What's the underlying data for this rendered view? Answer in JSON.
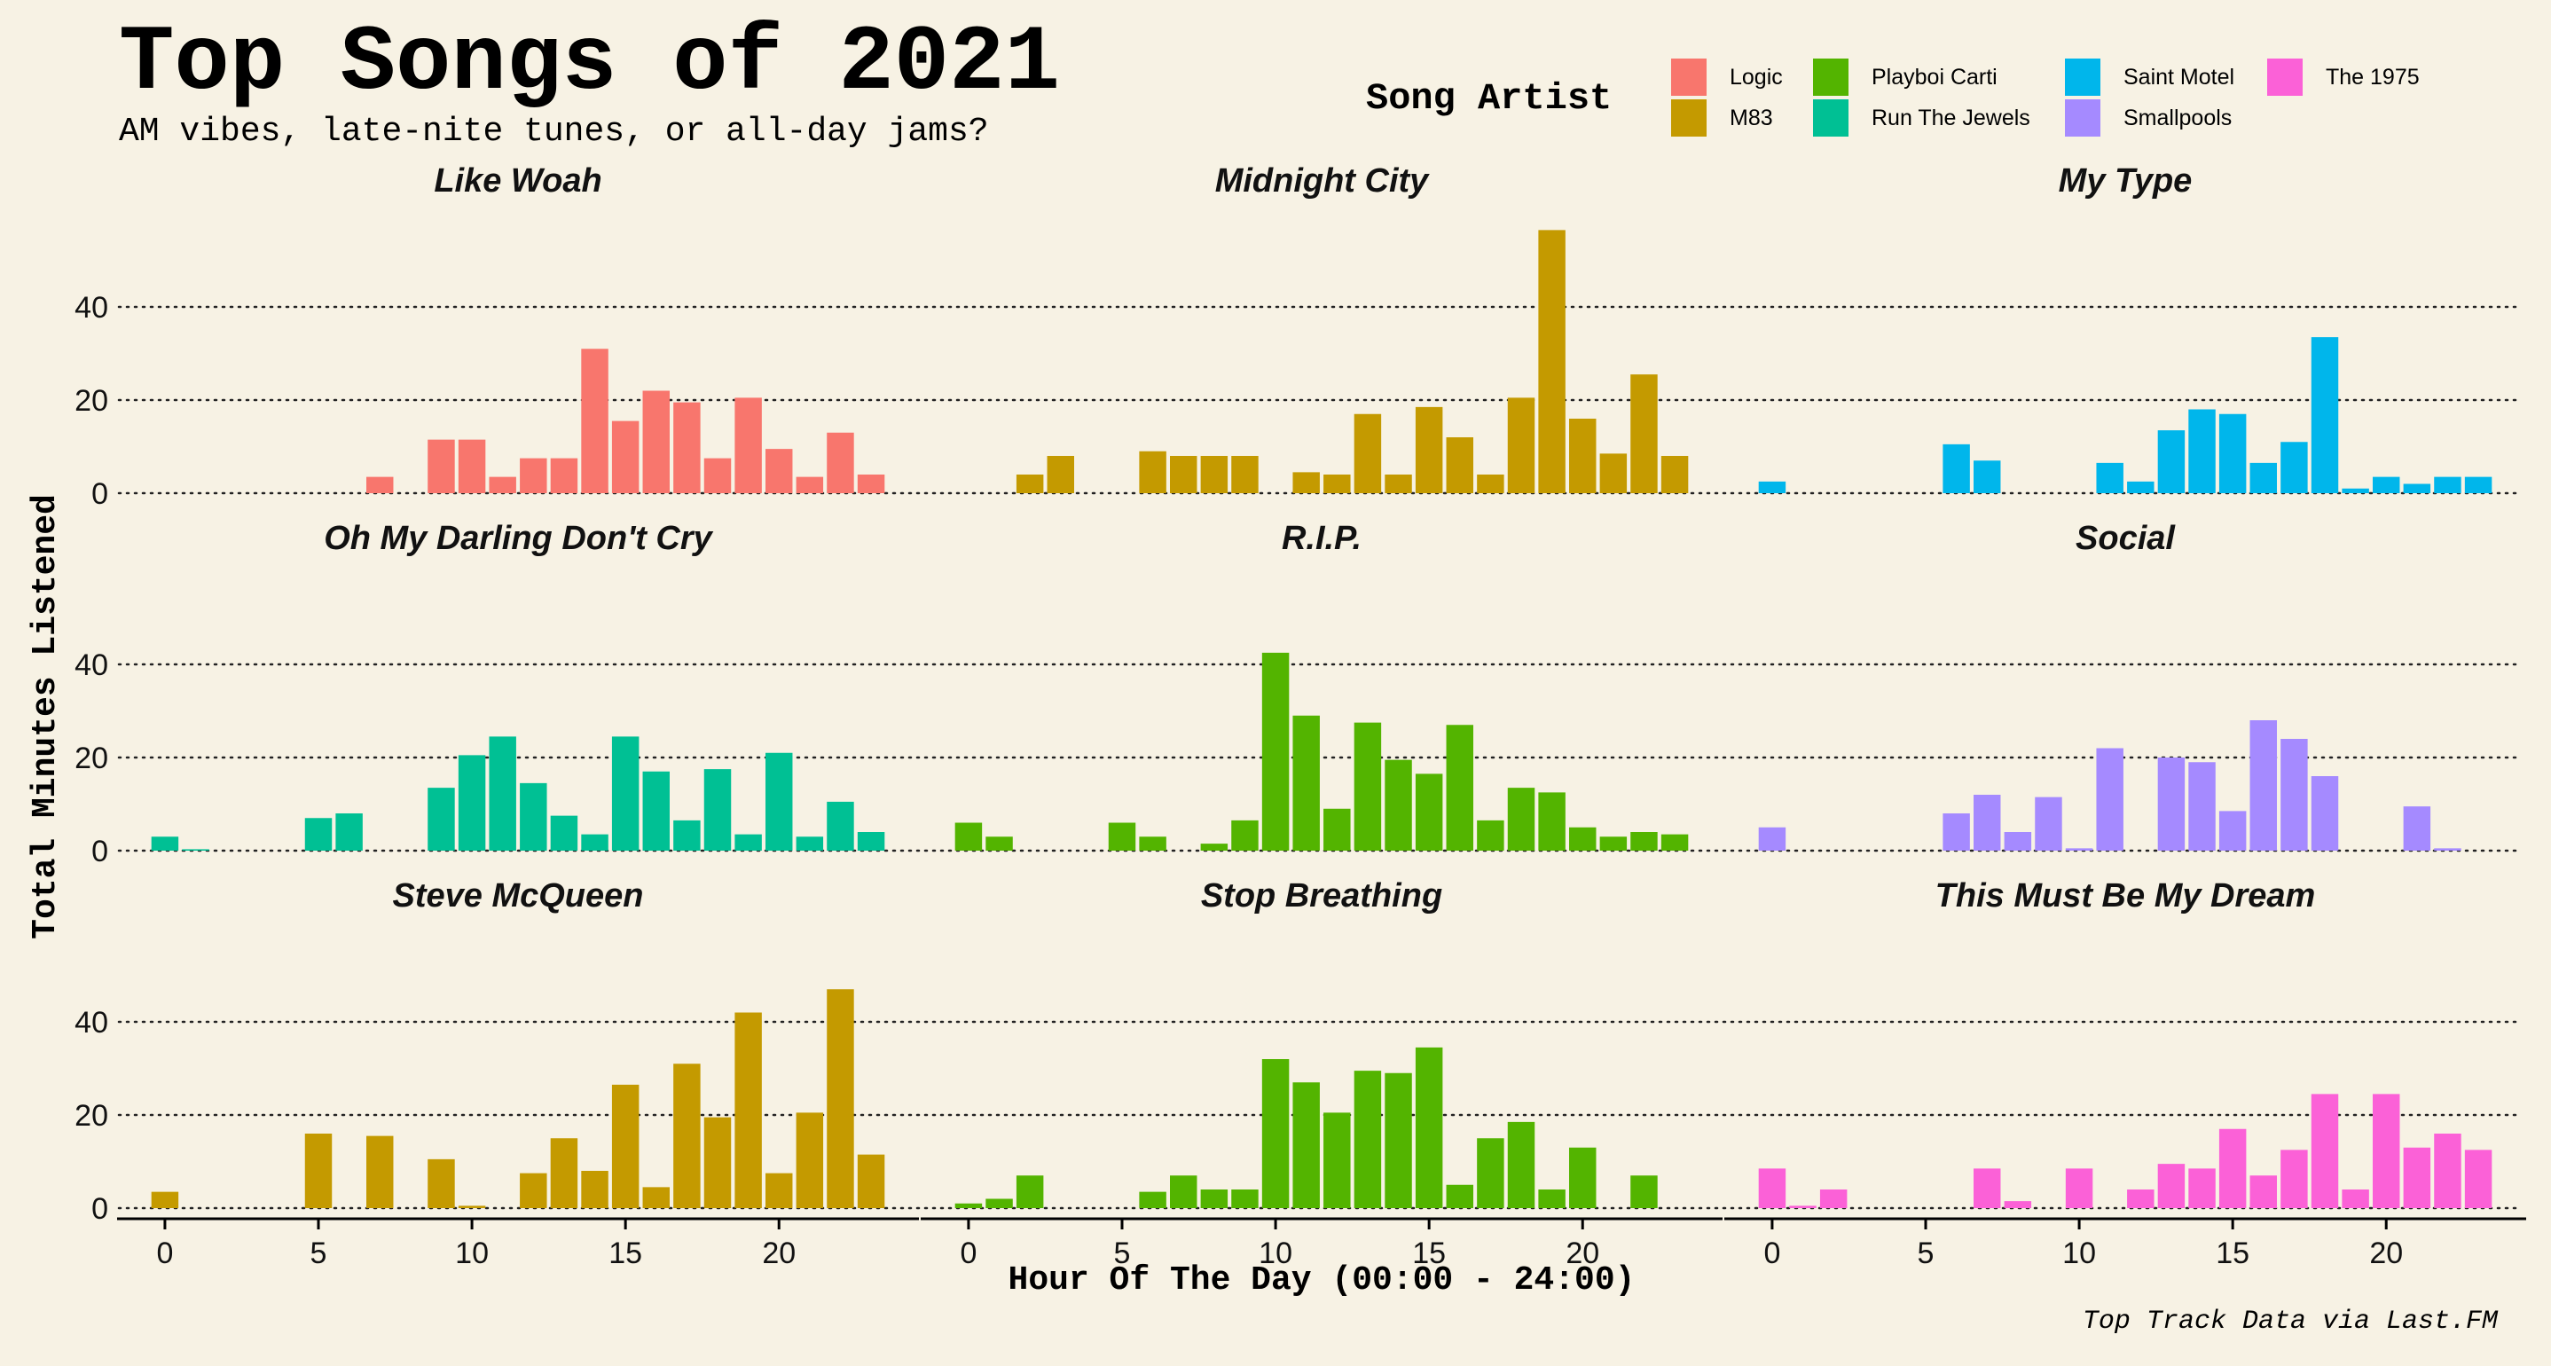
{
  "header": {
    "title": "Top Songs of 2021",
    "subtitle": "AM vibes, late-nite tunes, or all-day jams?"
  },
  "legend": {
    "title": "Song Artist",
    "items": [
      {
        "label": "Logic",
        "color": "#f8766d"
      },
      {
        "label": "M83",
        "color": "#c49a00"
      },
      {
        "label": "Playboi Carti",
        "color": "#53b400"
      },
      {
        "label": "Run The Jewels",
        "color": "#00c094"
      },
      {
        "label": "Saint Motel",
        "color": "#00b6eb"
      },
      {
        "label": "Smallpools",
        "color": "#a58aff"
      },
      {
        "label": "The 1975",
        "color": "#fb61d7"
      }
    ]
  },
  "caption": "Top Track Data via Last.FM",
  "chart_data": {
    "type": "bar",
    "title": "Top Songs of 2021",
    "subtitle": "AM vibes, late-nite tunes, or all-day jams?",
    "xlabel": "Hour Of The Day (00:00 - 24:00)",
    "ylabel": "Total Minutes Listened",
    "xlim": [
      -1.5,
      24.5
    ],
    "ylim": [
      0,
      58
    ],
    "x_ticks": [
      0,
      5,
      10,
      15,
      20
    ],
    "y_ticks": [
      0,
      20,
      40
    ],
    "grid": "horizontal dotted",
    "legend_position": "top-right",
    "facets": [
      {
        "song": "Like Woah",
        "artist": "Logic",
        "color": "#f8766d",
        "hours": [
          7,
          9,
          10,
          11,
          12,
          13,
          14,
          15,
          16,
          17,
          18,
          19,
          20,
          21,
          22,
          23
        ],
        "values": [
          3.5,
          11.5,
          11.5,
          3.5,
          7.5,
          7.5,
          31,
          15.5,
          22,
          19.5,
          7.5,
          20.5,
          9.5,
          3.5,
          13,
          4
        ]
      },
      {
        "song": "Midnight City",
        "artist": "M83",
        "color": "#c49a00",
        "hours": [
          2,
          3,
          6,
          7,
          8,
          9,
          11,
          12,
          13,
          14,
          15,
          16,
          17,
          18,
          19,
          20,
          21,
          22,
          23
        ],
        "values": [
          4,
          8,
          9,
          8,
          8,
          8,
          4.5,
          4,
          17,
          4,
          18.5,
          12,
          4,
          20.5,
          56.5,
          16,
          8.5,
          25.5,
          8
        ]
      },
      {
        "song": "My Type",
        "artist": "Saint Motel",
        "color": "#00b6eb",
        "hours": [
          0,
          6,
          7,
          11,
          12,
          13,
          14,
          15,
          16,
          17,
          18,
          19,
          20,
          21,
          22,
          23
        ],
        "values": [
          2.5,
          10.5,
          7,
          6.5,
          2.5,
          13.5,
          18,
          17,
          6.5,
          11,
          33.5,
          1,
          3.5,
          2,
          3.5,
          3.5
        ]
      },
      {
        "song": "Oh My Darling Don't Cry",
        "artist": "Run The Jewels",
        "color": "#00c094",
        "hours": [
          0,
          1,
          5,
          6,
          9,
          10,
          11,
          12,
          13,
          14,
          15,
          16,
          17,
          18,
          19,
          20,
          21,
          22,
          23
        ],
        "values": [
          3,
          0.3,
          7,
          8,
          13.5,
          20.5,
          24.5,
          14.5,
          7.5,
          3.5,
          24.5,
          17,
          6.5,
          17.5,
          3.5,
          21,
          3,
          10.5,
          4
        ]
      },
      {
        "song": "R.I.P.",
        "artist": "Playboi Carti",
        "color": "#53b400",
        "hours": [
          0,
          1,
          5,
          6,
          8,
          9,
          10,
          11,
          12,
          13,
          14,
          15,
          16,
          17,
          18,
          19,
          20,
          21,
          22,
          23
        ],
        "values": [
          6,
          3,
          6,
          3,
          1.5,
          6.5,
          42.5,
          29,
          9,
          27.5,
          19.5,
          16.5,
          27,
          6.5,
          13.5,
          12.5,
          5,
          3,
          4,
          3.5
        ]
      },
      {
        "song": "Social",
        "artist": "Smallpools",
        "color": "#a58aff",
        "hours": [
          0,
          6,
          7,
          8,
          9,
          10,
          11,
          13,
          14,
          15,
          16,
          17,
          18,
          21,
          22
        ],
        "values": [
          5,
          8,
          12,
          4,
          11.5,
          0.5,
          22,
          20,
          19,
          8.5,
          28,
          24,
          16,
          9.5,
          0.5
        ]
      },
      {
        "song": "Steve McQueen",
        "artist": "M83",
        "color": "#c49a00",
        "hours": [
          0,
          5,
          7,
          9,
          10,
          12,
          13,
          14,
          15,
          16,
          17,
          18,
          19,
          20,
          21,
          22,
          23
        ],
        "values": [
          3.5,
          16,
          15.5,
          10.5,
          0.5,
          7.5,
          15,
          8,
          26.5,
          4.5,
          31,
          19.5,
          42,
          7.5,
          20.5,
          47,
          11.5
        ]
      },
      {
        "song": "Stop Breathing",
        "artist": "Playboi Carti",
        "color": "#53b400",
        "hours": [
          0,
          1,
          2,
          6,
          7,
          8,
          9,
          10,
          11,
          12,
          13,
          14,
          15,
          16,
          17,
          18,
          19,
          20,
          22
        ],
        "values": [
          1,
          2,
          7,
          3.5,
          7,
          4,
          4,
          32,
          27,
          20.5,
          29.5,
          29,
          34.5,
          5,
          15,
          18.5,
          4,
          13,
          7
        ]
      },
      {
        "song": "This Must Be My Dream",
        "artist": "The 1975",
        "color": "#fb61d7",
        "hours": [
          0,
          1,
          2,
          7,
          8,
          10,
          12,
          13,
          14,
          15,
          16,
          17,
          18,
          19,
          20,
          21,
          22,
          23
        ],
        "values": [
          8.5,
          0.5,
          4,
          8.5,
          1.5,
          8.5,
          4,
          9.5,
          8.5,
          17,
          7,
          12.5,
          24.5,
          4,
          24.5,
          13,
          16,
          12.5
        ]
      }
    ]
  }
}
